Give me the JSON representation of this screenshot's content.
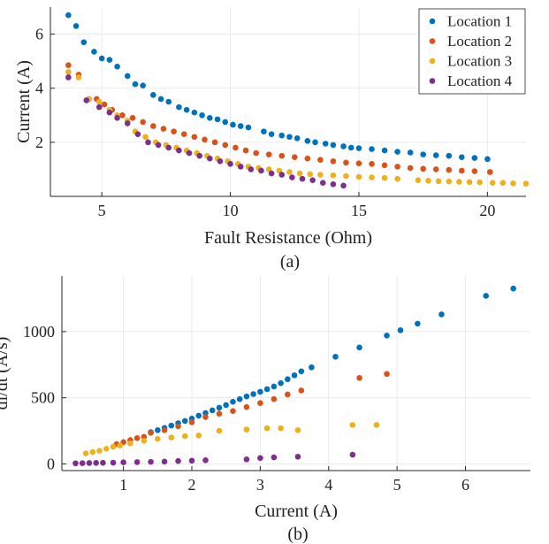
{
  "chart_data": [
    {
      "type": "scatter",
      "panel_label": "(a)",
      "xlabel": "Fault Resistance (Ohm)",
      "ylabel": "Current (A)",
      "xlim": [
        3,
        21.5
      ],
      "ylim": [
        0,
        7
      ],
      "xticks": [
        5,
        10,
        15,
        20
      ],
      "yticks": [
        2,
        4,
        6
      ],
      "grid": true,
      "legend_position": "top-right",
      "series": [
        {
          "name": "Location 1",
          "color": "#0072BD",
          "points": [
            [
              3.7,
              6.7
            ],
            [
              4.0,
              6.3
            ],
            [
              4.3,
              5.7
            ],
            [
              4.7,
              5.35
            ],
            [
              5.0,
              5.1
            ],
            [
              5.3,
              5.05
            ],
            [
              5.6,
              4.8
            ],
            [
              6.0,
              4.45
            ],
            [
              6.3,
              4.15
            ],
            [
              6.6,
              4.1
            ],
            [
              7.0,
              3.75
            ],
            [
              7.3,
              3.6
            ],
            [
              7.6,
              3.5
            ],
            [
              8.0,
              3.3
            ],
            [
              8.3,
              3.2
            ],
            [
              8.6,
              3.1
            ],
            [
              8.9,
              3.0
            ],
            [
              9.2,
              2.9
            ],
            [
              9.5,
              2.85
            ],
            [
              9.8,
              2.75
            ],
            [
              10.1,
              2.65
            ],
            [
              10.4,
              2.6
            ],
            [
              10.7,
              2.55
            ],
            [
              11.3,
              2.4
            ],
            [
              11.6,
              2.3
            ],
            [
              12.0,
              2.25
            ],
            [
              12.3,
              2.2
            ],
            [
              12.6,
              2.15
            ],
            [
              13.0,
              2.05
            ],
            [
              13.3,
              2.0
            ],
            [
              13.7,
              1.95
            ],
            [
              14.0,
              1.9
            ],
            [
              14.4,
              1.85
            ],
            [
              14.7,
              1.8
            ],
            [
              15.0,
              1.78
            ],
            [
              15.5,
              1.75
            ],
            [
              16.0,
              1.7
            ],
            [
              16.5,
              1.65
            ],
            [
              17.0,
              1.62
            ],
            [
              17.5,
              1.55
            ],
            [
              18.0,
              1.52
            ],
            [
              18.5,
              1.5
            ],
            [
              19.0,
              1.45
            ],
            [
              19.5,
              1.42
            ],
            [
              20.0,
              1.38
            ]
          ]
        },
        {
          "name": "Location 2",
          "color": "#D95319",
          "points": [
            [
              3.7,
              4.85
            ],
            [
              4.1,
              4.5
            ],
            [
              4.5,
              3.6
            ],
            [
              4.8,
              3.6
            ],
            [
              5.1,
              3.4
            ],
            [
              5.4,
              3.2
            ],
            [
              5.8,
              3.0
            ],
            [
              6.2,
              2.9
            ],
            [
              6.6,
              2.75
            ],
            [
              7.0,
              2.6
            ],
            [
              7.4,
              2.5
            ],
            [
              7.8,
              2.4
            ],
            [
              8.2,
              2.3
            ],
            [
              8.6,
              2.2
            ],
            [
              9.0,
              2.1
            ],
            [
              9.4,
              2.0
            ],
            [
              9.8,
              1.9
            ],
            [
              10.2,
              1.8
            ],
            [
              10.6,
              1.7
            ],
            [
              11.0,
              1.6
            ],
            [
              11.5,
              1.55
            ],
            [
              12.0,
              1.5
            ],
            [
              12.5,
              1.45
            ],
            [
              13.0,
              1.4
            ],
            [
              13.5,
              1.35
            ],
            [
              14.0,
              1.3
            ],
            [
              14.5,
              1.25
            ],
            [
              15.0,
              1.22
            ],
            [
              15.5,
              1.2
            ],
            [
              16.0,
              1.15
            ],
            [
              16.5,
              1.1
            ],
            [
              17.0,
              1.05
            ],
            [
              17.5,
              1.02
            ],
            [
              18.0,
              1.0
            ],
            [
              18.5,
              0.98
            ],
            [
              19.0,
              0.95
            ],
            [
              19.5,
              0.93
            ],
            [
              20.1,
              0.9
            ]
          ]
        },
        {
          "name": "Location 3",
          "color": "#EDB120",
          "points": [
            [
              3.7,
              4.6
            ],
            [
              4.1,
              4.4
            ],
            [
              4.5,
              3.6
            ],
            [
              4.9,
              3.5
            ],
            [
              5.3,
              3.2
            ],
            [
              5.6,
              3.0
            ],
            [
              6.0,
              2.8
            ],
            [
              6.3,
              2.4
            ],
            [
              6.7,
              2.2
            ],
            [
              7.1,
              2.0
            ],
            [
              7.5,
              1.9
            ],
            [
              7.9,
              1.8
            ],
            [
              8.3,
              1.7
            ],
            [
              8.7,
              1.6
            ],
            [
              9.1,
              1.5
            ],
            [
              9.5,
              1.4
            ],
            [
              9.9,
              1.3
            ],
            [
              10.3,
              1.2
            ],
            [
              10.7,
              1.1
            ],
            [
              11.1,
              1.05
            ],
            [
              11.5,
              1.0
            ],
            [
              11.9,
              0.95
            ],
            [
              12.3,
              0.9
            ],
            [
              12.7,
              0.85
            ],
            [
              13.1,
              0.82
            ],
            [
              13.5,
              0.8
            ],
            [
              14.0,
              0.78
            ],
            [
              14.5,
              0.75
            ],
            [
              15.0,
              0.72
            ],
            [
              15.5,
              0.7
            ],
            [
              16.0,
              0.68
            ],
            [
              16.5,
              0.65
            ],
            [
              17.3,
              0.6
            ],
            [
              17.7,
              0.58
            ],
            [
              18.1,
              0.56
            ],
            [
              18.5,
              0.55
            ],
            [
              18.9,
              0.54
            ],
            [
              19.3,
              0.53
            ],
            [
              19.7,
              0.52
            ],
            [
              20.2,
              0.5
            ],
            [
              20.6,
              0.5
            ],
            [
              21.0,
              0.48
            ],
            [
              21.5,
              0.47
            ]
          ]
        },
        {
          "name": "Location 4",
          "color": "#7E2F8E",
          "points": [
            [
              3.7,
              4.4
            ],
            [
              4.4,
              3.55
            ],
            [
              4.9,
              3.3
            ],
            [
              5.3,
              3.1
            ],
            [
              5.6,
              2.9
            ],
            [
              6.0,
              2.7
            ],
            [
              6.4,
              2.3
            ],
            [
              6.8,
              2.0
            ],
            [
              7.2,
              1.9
            ],
            [
              7.6,
              1.8
            ],
            [
              8.0,
              1.7
            ],
            [
              8.4,
              1.6
            ],
            [
              8.8,
              1.5
            ],
            [
              9.2,
              1.4
            ],
            [
              9.6,
              1.3
            ],
            [
              10.0,
              1.2
            ],
            [
              10.4,
              1.1
            ],
            [
              10.8,
              1.0
            ],
            [
              11.2,
              0.95
            ],
            [
              11.6,
              0.85
            ],
            [
              12.0,
              0.8
            ],
            [
              12.4,
              0.7
            ],
            [
              12.8,
              0.65
            ],
            [
              13.2,
              0.6
            ],
            [
              13.6,
              0.5
            ],
            [
              14.0,
              0.45
            ],
            [
              14.4,
              0.4
            ]
          ]
        }
      ]
    },
    {
      "type": "scatter",
      "panel_label": "(b)",
      "xlabel": "Current (A)",
      "ylabel": "di/dt (A/s)",
      "xlim": [
        0.1,
        6.95
      ],
      "ylim": [
        -50,
        1420
      ],
      "xticks": [
        1,
        2,
        3,
        4,
        5,
        6
      ],
      "yticks": [
        0,
        500,
        1000
      ],
      "grid": true,
      "series": [
        {
          "name": "Location 1",
          "color": "#0072BD",
          "points": [
            [
              1.4,
              240
            ],
            [
              1.5,
              255
            ],
            [
              1.6,
              272
            ],
            [
              1.7,
              290
            ],
            [
              1.8,
              308
            ],
            [
              1.9,
              325
            ],
            [
              2.0,
              343
            ],
            [
              2.1,
              365
            ],
            [
              2.2,
              385
            ],
            [
              2.3,
              405
            ],
            [
              2.4,
              425
            ],
            [
              2.5,
              445
            ],
            [
              2.6,
              470
            ],
            [
              2.7,
              490
            ],
            [
              2.8,
              510
            ],
            [
              2.9,
              528
            ],
            [
              3.0,
              545
            ],
            [
              3.1,
              565
            ],
            [
              3.2,
              585
            ],
            [
              3.3,
              610
            ],
            [
              3.4,
              640
            ],
            [
              3.5,
              670
            ],
            [
              3.6,
              700
            ],
            [
              3.75,
              730
            ],
            [
              4.1,
              810
            ],
            [
              4.45,
              880
            ],
            [
              4.85,
              970
            ],
            [
              5.05,
              1010
            ],
            [
              5.3,
              1060
            ],
            [
              5.65,
              1130
            ],
            [
              6.3,
              1270
            ],
            [
              6.7,
              1325
            ]
          ]
        },
        {
          "name": "Location 2",
          "color": "#D95319",
          "points": [
            [
              0.9,
              150
            ],
            [
              1.0,
              165
            ],
            [
              1.1,
              180
            ],
            [
              1.2,
              195
            ],
            [
              1.3,
              205
            ],
            [
              1.4,
              235
            ],
            [
              1.6,
              255
            ],
            [
              1.8,
              285
            ],
            [
              2.0,
              315
            ],
            [
              2.2,
              355
            ],
            [
              2.4,
              380
            ],
            [
              2.6,
              400
            ],
            [
              2.8,
              430
            ],
            [
              3.0,
              460
            ],
            [
              3.2,
              490
            ],
            [
              3.4,
              525
            ],
            [
              3.6,
              555
            ],
            [
              4.45,
              650
            ],
            [
              4.85,
              680
            ]
          ]
        },
        {
          "name": "Location 3",
          "color": "#EDB120",
          "points": [
            [
              0.45,
              80
            ],
            [
              0.55,
              90
            ],
            [
              0.65,
              100
            ],
            [
              0.75,
              115
            ],
            [
              0.85,
              130
            ],
            [
              0.95,
              140
            ],
            [
              1.1,
              155
            ],
            [
              1.3,
              175
            ],
            [
              1.5,
              190
            ],
            [
              1.7,
              200
            ],
            [
              1.9,
              210
            ],
            [
              2.1,
              215
            ],
            [
              2.4,
              250
            ],
            [
              2.8,
              260
            ],
            [
              3.1,
              270
            ],
            [
              3.3,
              270
            ],
            [
              3.55,
              255
            ],
            [
              4.35,
              295
            ],
            [
              4.7,
              295
            ]
          ]
        },
        {
          "name": "Location 4",
          "color": "#7E2F8E",
          "points": [
            [
              0.3,
              5
            ],
            [
              0.4,
              6
            ],
            [
              0.5,
              7
            ],
            [
              0.6,
              8
            ],
            [
              0.7,
              9
            ],
            [
              0.85,
              10
            ],
            [
              1.0,
              12
            ],
            [
              1.2,
              14
            ],
            [
              1.4,
              16
            ],
            [
              1.6,
              18
            ],
            [
              1.8,
              22
            ],
            [
              2.0,
              25
            ],
            [
              2.2,
              28
            ],
            [
              2.8,
              35
            ],
            [
              3.0,
              45
            ],
            [
              3.2,
              50
            ],
            [
              3.55,
              55
            ],
            [
              4.35,
              70
            ]
          ]
        }
      ]
    }
  ]
}
